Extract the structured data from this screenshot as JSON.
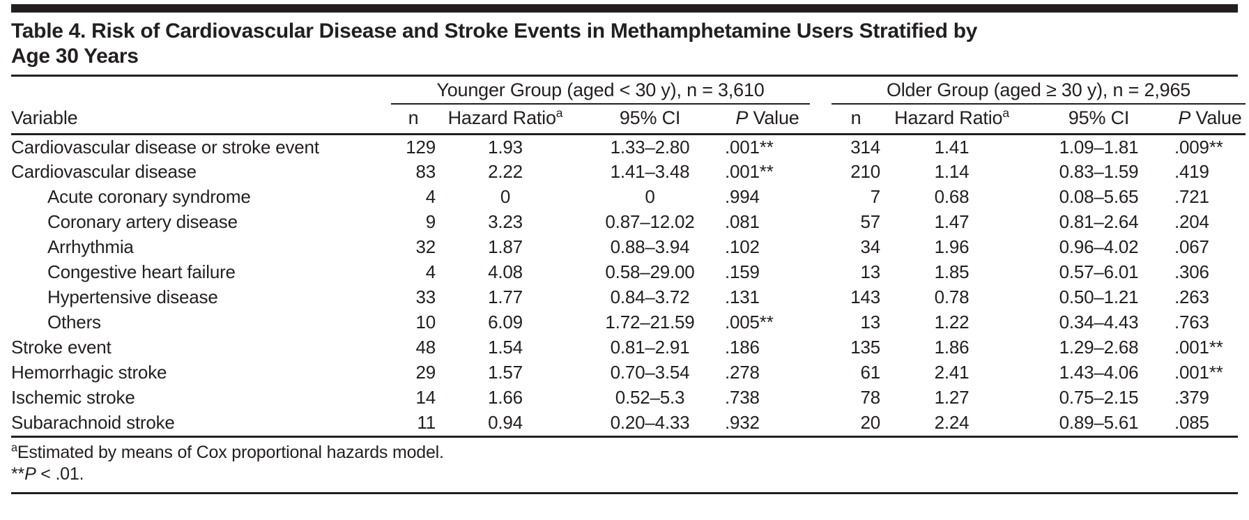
{
  "table": {
    "title_line1": "Table 4. Risk of Cardiovascular Disease and Stroke Events in Methamphetamine Users Stratified by",
    "title_line2": "Age 30 Years",
    "groups": {
      "younger": "Younger Group (aged < 30 y), n = 3,610",
      "older": "Older Group (aged ≥ 30 y), n = 2,965"
    },
    "headers": {
      "variable": "Variable",
      "n": "n",
      "hazard_ratio": "Hazard Ratio",
      "hazard_ratio_footnote_mark": "a",
      "ci": "95% CI",
      "p_italic": "P",
      "p_rest": " Value"
    },
    "rows": [
      {
        "variable": "Cardiovascular disease or stroke event",
        "indent": false,
        "y_n": "129",
        "y_hr": "1.93",
        "y_ci": "1.33–2.80",
        "y_p": ".001**",
        "o_n": "314",
        "o_hr": "1.41",
        "o_ci": "1.09–1.81",
        "o_p": ".009**"
      },
      {
        "variable": "Cardiovascular disease",
        "indent": false,
        "y_n": "83",
        "y_hr": "2.22",
        "y_ci": "1.41–3.48",
        "y_p": ".001**",
        "o_n": "210",
        "o_hr": "1.14",
        "o_ci": "0.83–1.59",
        "o_p": ".419"
      },
      {
        "variable": "Acute coronary syndrome",
        "indent": true,
        "y_n": "4",
        "y_hr": "0",
        "y_ci": "0",
        "y_p": ".994",
        "o_n": "7",
        "o_hr": "0.68",
        "o_ci": "0.08–5.65",
        "o_p": ".721"
      },
      {
        "variable": "Coronary artery disease",
        "indent": true,
        "y_n": "9",
        "y_hr": "3.23",
        "y_ci": "0.87–12.02",
        "y_p": ".081",
        "o_n": "57",
        "o_hr": "1.47",
        "o_ci": "0.81–2.64",
        "o_p": ".204"
      },
      {
        "variable": "Arrhythmia",
        "indent": true,
        "y_n": "32",
        "y_hr": "1.87",
        "y_ci": "0.88–3.94",
        "y_p": ".102",
        "o_n": "34",
        "o_hr": "1.96",
        "o_ci": "0.96–4.02",
        "o_p": ".067"
      },
      {
        "variable": "Congestive heart failure",
        "indent": true,
        "y_n": "4",
        "y_hr": "4.08",
        "y_ci": "0.58–29.00",
        "y_p": ".159",
        "o_n": "13",
        "o_hr": "1.85",
        "o_ci": "0.57–6.01",
        "o_p": ".306"
      },
      {
        "variable": "Hypertensive disease",
        "indent": true,
        "y_n": "33",
        "y_hr": "1.77",
        "y_ci": "0.84–3.72",
        "y_p": ".131",
        "o_n": "143",
        "o_hr": "0.78",
        "o_ci": "0.50–1.21",
        "o_p": ".263"
      },
      {
        "variable": "Others",
        "indent": true,
        "y_n": "10",
        "y_hr": "6.09",
        "y_ci": "1.72–21.59",
        "y_p": ".005**",
        "o_n": "13",
        "o_hr": "1.22",
        "o_ci": "0.34–4.43",
        "o_p": ".763"
      },
      {
        "variable": "Stroke event",
        "indent": false,
        "y_n": "48",
        "y_hr": "1.54",
        "y_ci": "0.81–2.91",
        "y_p": ".186",
        "o_n": "135",
        "o_hr": "1.86",
        "o_ci": "1.29–2.68",
        "o_p": ".001**"
      },
      {
        "variable": "Hemorrhagic stroke",
        "indent": false,
        "y_n": "29",
        "y_hr": "1.57",
        "y_ci": "0.70–3.54",
        "y_p": ".278",
        "o_n": "61",
        "o_hr": "2.41",
        "o_ci": "1.43–4.06",
        "o_p": ".001**"
      },
      {
        "variable": "Ischemic stroke",
        "indent": false,
        "y_n": "14",
        "y_hr": "1.66",
        "y_ci": "0.52–5.3",
        "y_p": ".738",
        "o_n": "78",
        "o_hr": "1.27",
        "o_ci": "0.75–2.15",
        "o_p": ".379"
      },
      {
        "variable": "Subarachnoid stroke",
        "indent": false,
        "y_n": "11",
        "y_hr": "0.94",
        "y_ci": "0.20–4.33",
        "y_p": ".932",
        "o_n": "20",
        "o_hr": "2.24",
        "o_ci": "0.89–5.61",
        "o_p": ".085"
      }
    ],
    "footnotes": {
      "a_mark": "a",
      "a_text": "Estimated by means of Cox proportional hazards model.",
      "sig_stars": "**",
      "sig_p": "P",
      "sig_rest": " < .01."
    }
  }
}
